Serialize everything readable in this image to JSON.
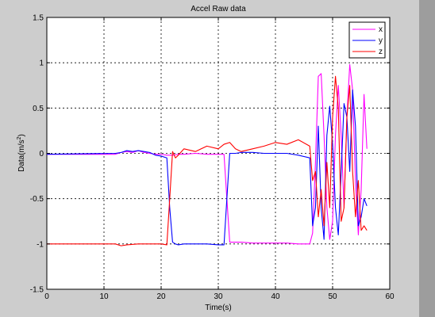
{
  "chart_data": {
    "type": "line",
    "title": "Accel Raw data",
    "xlabel": "Time(s)",
    "ylabel": "Data(m/s",
    "ylabel_sup": "2",
    "ylabel_close": ")",
    "xlim": [
      0,
      60
    ],
    "ylim": [
      -1.5,
      1.5
    ],
    "xticks": [
      0,
      10,
      20,
      30,
      40,
      50,
      60
    ],
    "yticks": [
      -1.5,
      -1,
      -0.5,
      0,
      0.5,
      1,
      1.5
    ],
    "grid": true,
    "legend_position": "top-right",
    "series": [
      {
        "name": "x",
        "color": "#ff00ff",
        "x": [
          0,
          12,
          13,
          14,
          15,
          16,
          17,
          18,
          19,
          20,
          21,
          22,
          23,
          24,
          26,
          28,
          30,
          31,
          31.5,
          32,
          34,
          36,
          38,
          40,
          42,
          44,
          46,
          46.5,
          47,
          47.5,
          48,
          48.5,
          49,
          49.5,
          50,
          50.5,
          51,
          51.5,
          52,
          52.5,
          53,
          53.5,
          54,
          54.5,
          55,
          55.5,
          56
        ],
        "y": [
          -0.01,
          -0.01,
          0.01,
          0.02,
          0.01,
          0.03,
          0.01,
          0.0,
          -0.01,
          -0.01,
          -0.02,
          -0.02,
          -0.01,
          -0.01,
          0.0,
          -0.01,
          -0.01,
          -0.01,
          -0.5,
          -0.98,
          -0.98,
          -0.99,
          -0.99,
          -0.99,
          -0.99,
          -1.0,
          -1.0,
          -0.88,
          -0.1,
          0.85,
          0.88,
          0.2,
          -0.6,
          -0.95,
          -0.75,
          0.2,
          0.75,
          0.2,
          -0.6,
          0.4,
          0.98,
          0.7,
          -0.3,
          -0.9,
          -0.4,
          0.65,
          0.05
        ]
      },
      {
        "name": "y",
        "color": "#0000ff",
        "x": [
          0,
          12,
          13,
          14,
          15,
          16,
          17,
          18,
          19,
          20,
          21,
          21.5,
          22,
          22.5,
          23,
          24,
          26,
          28,
          30,
          31,
          31.5,
          32,
          33,
          34,
          36,
          38,
          40,
          42,
          44,
          46,
          46.5,
          47,
          47.5,
          48,
          48.5,
          49,
          49.5,
          50,
          50.5,
          51,
          51.5,
          52,
          52.5,
          53,
          53.5,
          54,
          54.5,
          55,
          55.5,
          56
        ],
        "y": [
          -0.01,
          0.0,
          0.01,
          0.03,
          0.02,
          0.03,
          0.02,
          0.01,
          -0.02,
          -0.03,
          -0.05,
          -0.6,
          -0.98,
          -1.0,
          -1.01,
          -1.0,
          -1.0,
          -1.0,
          -1.01,
          -1.01,
          -0.5,
          0.0,
          0.0,
          0.01,
          0.01,
          0.0,
          0.0,
          0.0,
          -0.02,
          -0.05,
          -0.8,
          -0.6,
          0.3,
          -0.6,
          -0.95,
          0.2,
          0.52,
          0.1,
          -0.6,
          -0.9,
          -0.2,
          0.55,
          0.4,
          -0.2,
          0.7,
          0.3,
          -0.8,
          -0.7,
          -0.5,
          -0.58
        ]
      },
      {
        "name": "z",
        "color": "#ff0000",
        "x": [
          0,
          12,
          13,
          14,
          16,
          18,
          20,
          21,
          21.5,
          22,
          22.5,
          23,
          24,
          26,
          28,
          30,
          31,
          32,
          33,
          34,
          36,
          38,
          40,
          42,
          44,
          46,
          46.5,
          47,
          47.5,
          48,
          48.5,
          49,
          49.5,
          50,
          50.5,
          51,
          51.5,
          52,
          52.5,
          53,
          53.5,
          54,
          54.5,
          55,
          55.5,
          56
        ],
        "y": [
          -1.0,
          -1.0,
          -1.02,
          -1.01,
          -1.0,
          -1.0,
          -1.0,
          -1.01,
          -0.5,
          0.02,
          -0.05,
          -0.02,
          0.05,
          0.02,
          0.08,
          0.05,
          0.1,
          0.12,
          0.05,
          0.02,
          0.05,
          0.08,
          0.12,
          0.1,
          0.15,
          0.08,
          -0.3,
          -0.2,
          -0.7,
          -0.4,
          -0.8,
          -0.1,
          -0.6,
          0.4,
          0.85,
          0.5,
          -0.75,
          -0.6,
          0.4,
          0.75,
          -0.2,
          -0.7,
          -0.3,
          -0.85,
          -0.8,
          -0.85
        ]
      }
    ]
  }
}
